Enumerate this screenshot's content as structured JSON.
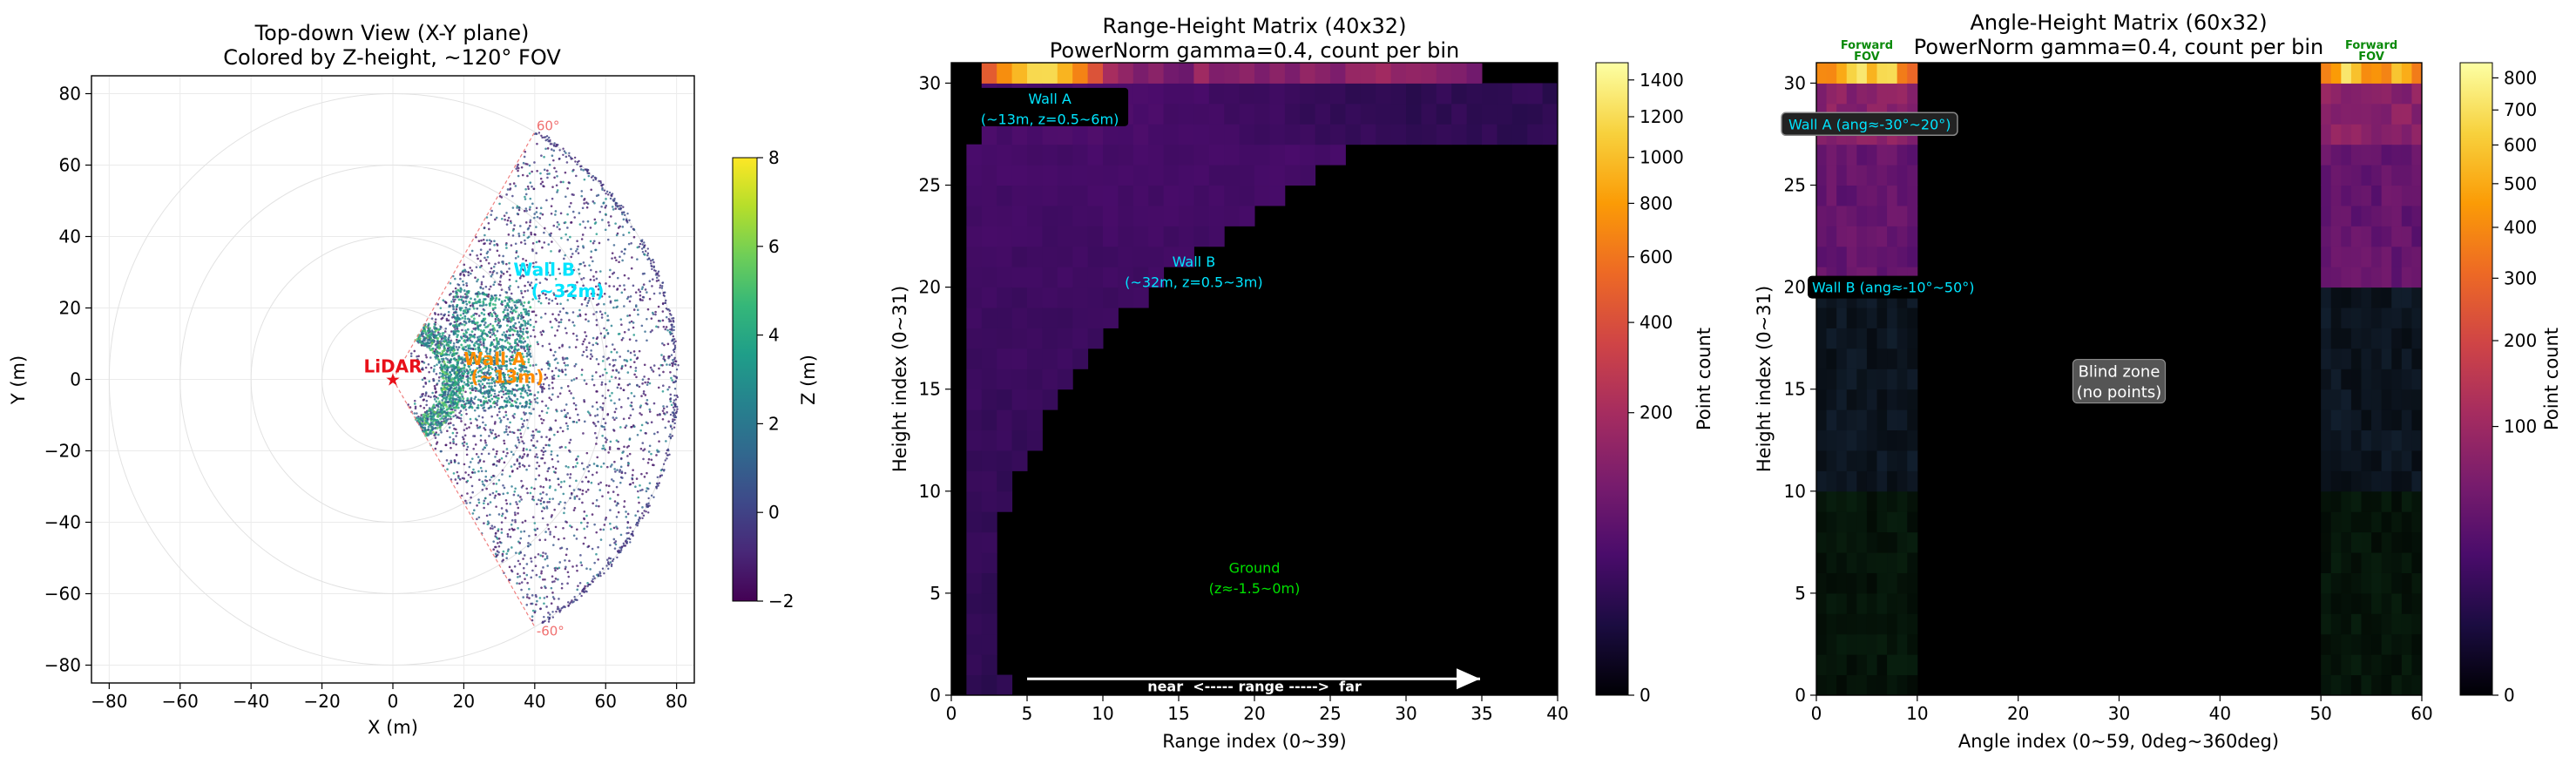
{
  "chart_data": [
    {
      "type": "scatter",
      "title": "Top-down View (X-Y plane)",
      "subtitle": "Colored by Z-height, ~120° FOV",
      "xlabel": "X (m)",
      "ylabel": "Y (m)",
      "xlim": [
        -85,
        85
      ],
      "ylim": [
        -85,
        85
      ],
      "xticks": [
        -80,
        -60,
        -40,
        -20,
        0,
        20,
        40,
        60,
        80
      ],
      "yticks": [
        -80,
        -60,
        -40,
        -20,
        0,
        20,
        40,
        60,
        80
      ],
      "grid": true,
      "fov_half_angle_deg": 60,
      "max_range": 80,
      "fov_labels": [
        "60°",
        "-60°"
      ],
      "lidar_label": "LiDAR",
      "annotations": [
        {
          "text": "Wall A",
          "x": 20,
          "y": 4
        },
        {
          "text": "(~13m)",
          "x": 22,
          "y": -1
        },
        {
          "text": "Wall B",
          "x": 34,
          "y": 29
        },
        {
          "text": "(~32m)",
          "x": 39,
          "y": 23
        }
      ],
      "colorbar": {
        "label": "Z (m)",
        "min": -2,
        "max": 8,
        "ticks": [
          -2,
          0,
          2,
          4,
          6,
          8
        ],
        "colormap": "viridis"
      },
      "lidar_color": "#e8101a",
      "annotation_colors": {
        "wall_a": "#ff8c00",
        "wall_b": "#00e5ff"
      }
    },
    {
      "type": "heatmap",
      "title": "Range-Height Matrix (40x32)",
      "subtitle": "PowerNorm gamma=0.4, count per bin",
      "xlabel": "Range index (0~39)",
      "ylabel": "Height index (0~31)",
      "xlim": [
        0,
        40
      ],
      "ylim": [
        0,
        31
      ],
      "xticks": [
        0,
        5,
        10,
        15,
        20,
        25,
        30,
        35,
        40
      ],
      "yticks": [
        0,
        5,
        10,
        15,
        20,
        25,
        30
      ],
      "colorbar": {
        "label": "Point count",
        "min": 0,
        "max": 1500,
        "gamma": 0.4,
        "ticks": [
          0,
          200,
          400,
          600,
          800,
          1000,
          1200,
          1400
        ],
        "colormap": "inferno"
      },
      "annotations": [
        {
          "text": "Wall A",
          "x": 6.5,
          "y": 29.0
        },
        {
          "text": "(~13m, z=0.5~6m)",
          "x": 6.5,
          "y": 28.0
        },
        {
          "text": "Wall B",
          "x": 16,
          "y": 21.0
        },
        {
          "text": "(~32m, z=0.5~3m)",
          "x": 16,
          "y": 20.0
        },
        {
          "text": "Ground",
          "x": 20,
          "y": 6.0
        },
        {
          "text": "(z≈-1.5~0m)",
          "x": 20,
          "y": 5.0
        }
      ],
      "arrow_label": "near  <----- range ----->  far",
      "arrow_from": 5,
      "arrow_to": 35,
      "label_colors": {
        "walls": "#00e5ff",
        "ground": "#00e000"
      }
    },
    {
      "type": "heatmap",
      "title": "Angle-Height Matrix (60x32)",
      "subtitle": "PowerNorm gamma=0.4, count per bin",
      "xlabel": "Angle index (0~59, 0deg~360deg)",
      "ylabel": "Height index (0~31)",
      "xlim": [
        0,
        60
      ],
      "ylim": [
        0,
        31
      ],
      "xticks": [
        0,
        10,
        20,
        30,
        40,
        50,
        60
      ],
      "yticks": [
        0,
        5,
        10,
        15,
        20,
        25,
        30
      ],
      "colorbar": {
        "label": "Point count",
        "min": 0,
        "max": 850,
        "gamma": 0.4,
        "ticks": [
          0,
          100,
          200,
          300,
          400,
          500,
          600,
          700,
          800
        ],
        "colormap": "inferno"
      },
      "annotations": [
        {
          "text": "Wall A (ang≈-30°~20°)",
          "x": 0,
          "y": 28.0
        },
        {
          "text": "Wall B (ang≈-10°~50°)",
          "x": 0,
          "y": 20.0
        },
        {
          "text": "Blind zone",
          "x": 30,
          "y": 15.6
        },
        {
          "text": "(no points)",
          "x": 30,
          "y": 14.6
        }
      ],
      "fov_labels": [
        {
          "line1": "Forward",
          "line2": "FOV",
          "x": 5
        },
        {
          "line1": "Forward",
          "line2": "FOV",
          "x": 55
        }
      ],
      "forward_fov_bins": [
        [
          0,
          10
        ],
        [
          50,
          60
        ]
      ],
      "label_colors": {
        "walls": "#00e5ff",
        "fov": "#0a8a0a"
      }
    }
  ]
}
